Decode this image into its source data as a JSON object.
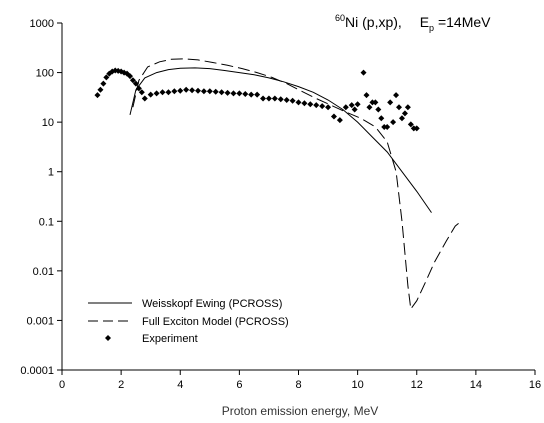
{
  "chart_data": {
    "type": "scatter",
    "title": {
      "prefix_sup": "60",
      "main": "Ni (p,xp),",
      "energy_main": "E",
      "energy_sub": "p",
      "energy_value": " =14MeV"
    },
    "xlabel": "Proton emission energy, MeV",
    "ylabel": "",
    "xlim": [
      0,
      16
    ],
    "ylim": [
      0.0001,
      1000
    ],
    "yscale": "log",
    "grid": false,
    "legend_position": "bottom-left",
    "x_ticks": [
      0,
      2,
      4,
      6,
      8,
      10,
      12,
      14,
      16
    ],
    "x_tick_labels": [
      "0",
      "2",
      "4",
      "6",
      "8",
      "10",
      "12",
      "14",
      "16"
    ],
    "y_ticks": [
      0.0001,
      0.001,
      0.01,
      0.1,
      1,
      10,
      100,
      1000
    ],
    "y_tick_labels": [
      "0.0001",
      "0.001",
      "0.01",
      "0.1",
      "1",
      "10",
      "100",
      "1000"
    ],
    "series": [
      {
        "name": "Weisskopf Ewing (PCROSS)",
        "style": "solid",
        "x": [
          2.3,
          2.5,
          2.8,
          3.2,
          3.6,
          4.0,
          4.5,
          5.0,
          5.5,
          6.0,
          6.5,
          7.0,
          7.5,
          8.0,
          8.5,
          9.0,
          9.5,
          10.0,
          10.5,
          11.0,
          11.5,
          12.0,
          12.5
        ],
        "y": [
          14,
          45,
          78,
          100,
          115,
          122,
          124,
          120,
          110,
          100,
          90,
          78,
          65,
          52,
          40,
          28,
          18,
          10,
          5,
          2.5,
          1,
          0.4,
          0.15
        ]
      },
      {
        "name": "Full Exciton  Model (PCROSS)",
        "style": "dashed",
        "x": [
          2.4,
          2.6,
          2.9,
          3.3,
          3.7,
          4.1,
          4.6,
          5.1,
          5.6,
          6.1,
          6.6,
          7.1,
          7.6,
          8.1,
          8.6,
          9.1,
          9.6,
          10.1,
          10.6,
          11.0,
          11.3,
          11.5,
          11.7,
          11.8,
          12.0,
          12.3,
          12.6,
          13.0,
          13.3,
          13.5
        ],
        "y": [
          20,
          70,
          130,
          165,
          185,
          190,
          180,
          160,
          140,
          120,
          100,
          80,
          60,
          42,
          30,
          22,
          16,
          12,
          8,
          4,
          1,
          0.1,
          0.005,
          0.0017,
          0.0025,
          0.006,
          0.015,
          0.04,
          0.08,
          0.1
        ]
      },
      {
        "name": "Experiment",
        "style": "marker",
        "x": [
          1.2,
          1.3,
          1.4,
          1.5,
          1.6,
          1.7,
          1.8,
          1.9,
          2.0,
          2.1,
          2.2,
          2.3,
          2.4,
          2.5,
          2.6,
          2.7,
          2.8,
          3.0,
          3.2,
          3.4,
          3.6,
          3.8,
          4.0,
          4.2,
          4.4,
          4.6,
          4.8,
          5.0,
          5.2,
          5.4,
          5.6,
          5.8,
          6.0,
          6.2,
          6.4,
          6.6,
          6.8,
          7.0,
          7.2,
          7.4,
          7.6,
          7.8,
          8.0,
          8.2,
          8.4,
          8.6,
          8.8,
          9.0,
          9.2,
          9.4,
          9.6,
          9.8,
          10.0,
          10.2,
          10.4,
          10.6,
          10.8,
          11.0,
          11.2,
          11.4,
          11.6,
          11.8,
          12.0,
          9.9,
          10.3,
          10.5,
          10.7,
          10.9,
          11.1,
          11.3,
          11.5,
          11.7,
          11.9
        ],
        "y": [
          35,
          45,
          60,
          80,
          95,
          105,
          110,
          108,
          105,
          100,
          95,
          85,
          70,
          60,
          48,
          40,
          30,
          36,
          38,
          40,
          40,
          42,
          43,
          45,
          44,
          43,
          42,
          42,
          41,
          40,
          39,
          38,
          38,
          37,
          36,
          36,
          30,
          30,
          30,
          29,
          28,
          27,
          25,
          24,
          23,
          22,
          21,
          20,
          13,
          11,
          20,
          22,
          23,
          100,
          20,
          25,
          12,
          8,
          10,
          20,
          15,
          9,
          7.5,
          18,
          35,
          25,
          18,
          8,
          25,
          35,
          12,
          20,
          7.5
        ]
      }
    ]
  }
}
